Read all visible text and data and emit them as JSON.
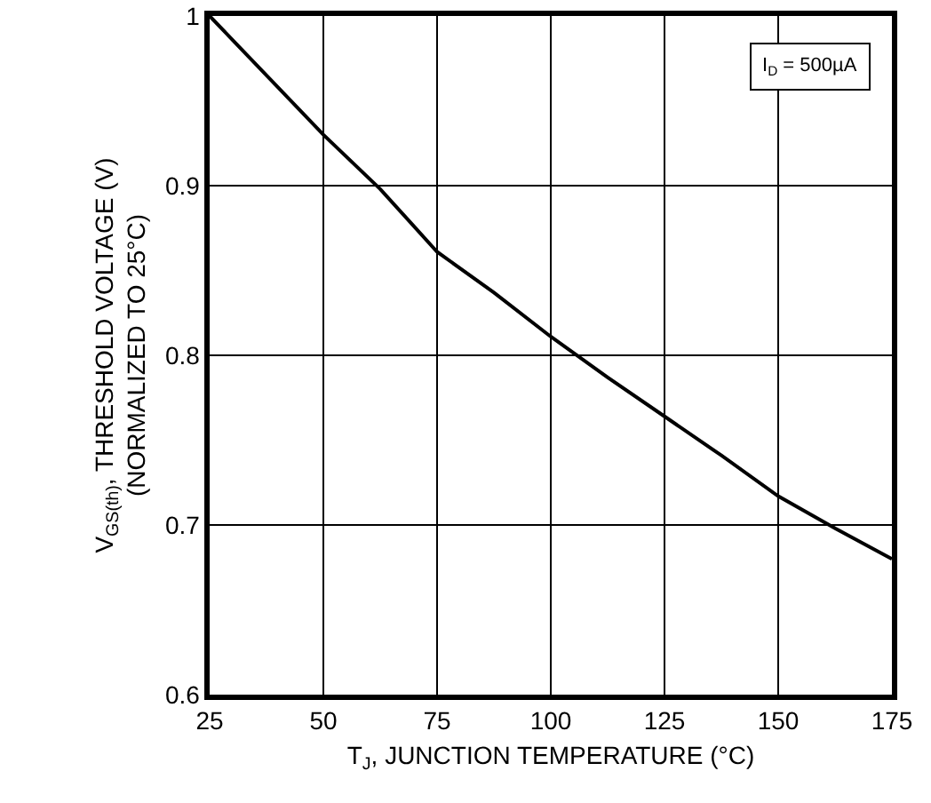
{
  "chart_data": {
    "type": "line",
    "xlabel": "T$_{J}$, JUNCTION TEMPERATURE (°C)",
    "ylabel": "V$_{GS(th)}$, THRESHOLD VOLTAGE (V)\n(NORMALIZED TO 25°C)",
    "annotations": [
      "I$_{D}$ = 500µA"
    ],
    "x": [
      25,
      50,
      62.5,
      75,
      87.5,
      100,
      112.5,
      125,
      137.5,
      150,
      162.5,
      175
    ],
    "series": [
      {
        "color": "#000000",
        "values": [
          1.0,
          0.93,
          0.898,
          0.861,
          0.837,
          0.811,
          0.787,
          0.764,
          0.741,
          0.717,
          0.698,
          0.68
        ]
      }
    ],
    "xlim": [
      25,
      175
    ],
    "xticks": [
      25,
      50,
      75,
      100,
      125,
      150,
      175
    ],
    "ylim": [
      0.6,
      1
    ],
    "yticks": [
      {
        "value": 0.6,
        "label": "0.6"
      },
      {
        "value": 0.7,
        "label": "0.7"
      },
      {
        "value": 0.8,
        "label": "0.8"
      },
      {
        "value": 0.9,
        "label": "0.9"
      },
      {
        "value": 1,
        "label": "1"
      }
    ],
    "grid": true,
    "marker": "none",
    "line_style": "solid"
  }
}
